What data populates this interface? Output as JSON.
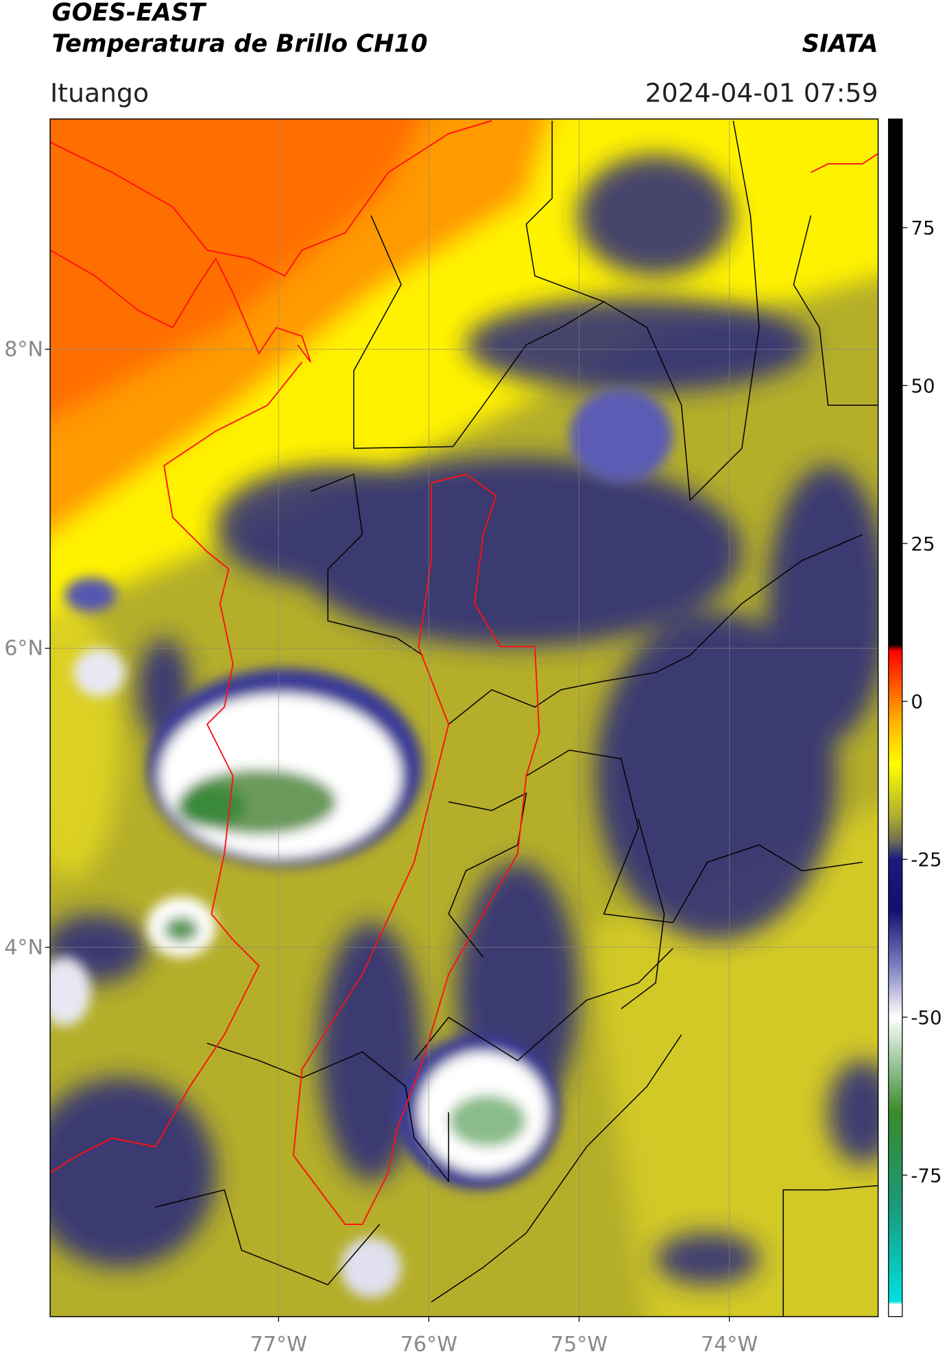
{
  "header": {
    "title": "GOES-EAST",
    "subtitle": "Temperatura de Brillo CH10",
    "agency": "SIATA",
    "region": "Ituango",
    "timestamp": "2024-04-01 07:59"
  },
  "map": {
    "type": "map",
    "xlim": [
      -78.52,
      -73.01
    ],
    "ylim": [
      1.53,
      9.54
    ],
    "xticks": [
      {
        "value": -77,
        "label": "77°W"
      },
      {
        "value": -76,
        "label": "76°W"
      },
      {
        "value": -75,
        "label": "75°W"
      },
      {
        "value": -74,
        "label": "74°W"
      }
    ],
    "yticks": [
      {
        "value": 4,
        "label": "4°N"
      },
      {
        "value": 6,
        "label": "6°N"
      },
      {
        "value": 8,
        "label": "8°N"
      }
    ],
    "grid": true,
    "colorbar": {
      "lim": [
        -97.4,
        92.2
      ],
      "ticks": [
        -75,
        -50,
        -25,
        0,
        25,
        50,
        75
      ],
      "stops": [
        {
          "value": -97.4,
          "color": "#ffffff"
        },
        {
          "value": -95.5,
          "color": "#ffffff"
        },
        {
          "value": -95,
          "color": "#00e0e0"
        },
        {
          "value": -80,
          "color": "#1a9a7a"
        },
        {
          "value": -65,
          "color": "#3a8a2a"
        },
        {
          "value": -58,
          "color": "#90c090"
        },
        {
          "value": -50,
          "color": "#ffffff"
        },
        {
          "value": -42,
          "color": "#8080c0"
        },
        {
          "value": -33,
          "color": "#101070"
        },
        {
          "value": -25,
          "color": "#1a1a80"
        },
        {
          "value": -22,
          "color": "#707050"
        },
        {
          "value": -18,
          "color": "#b0b030"
        },
        {
          "value": -10,
          "color": "#ffff00"
        },
        {
          "value": -3,
          "color": "#ffb000"
        },
        {
          "value": 0,
          "color": "#ff8000"
        },
        {
          "value": 8,
          "color": "#ff0000"
        },
        {
          "value": 9,
          "color": "#000000"
        },
        {
          "value": 92.2,
          "color": "#000000"
        }
      ]
    }
  }
}
